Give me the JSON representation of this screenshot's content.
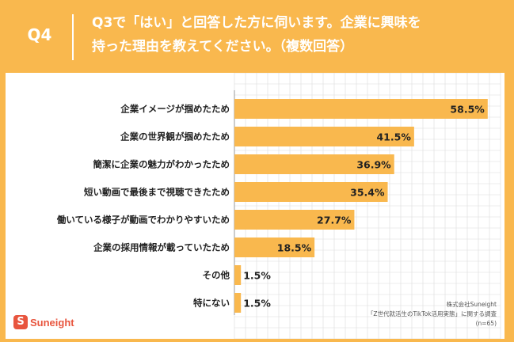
{
  "header": {
    "qnum": "Q4",
    "title_line1": "Q3で「はい」と回答した方に伺います。企業に興味を",
    "title_line2": "持った理由を教えてください。（複数回答）"
  },
  "colors": {
    "bar": "#f9b84e",
    "background": "#f9b84e",
    "grid": "#dcdcdc",
    "logo": "#e8553e"
  },
  "chart_data": {
    "type": "bar",
    "orientation": "horizontal",
    "categories": [
      "企業イメージが掴めたため",
      "企業の世界観が掴めたため",
      "簡潔に企業の魅力がわかったため",
      "短い動画で最後まで視聴できたため",
      "働いている様子が動画でわかりやすいため",
      "企業の採用情報が載っていたため",
      "その他",
      "特にない"
    ],
    "values": [
      58.5,
      41.5,
      36.9,
      35.4,
      27.7,
      18.5,
      1.5,
      1.5
    ],
    "value_labels": [
      "58.5%",
      "41.5%",
      "36.9%",
      "35.4%",
      "27.7%",
      "18.5%",
      "1.5%",
      "1.5%"
    ],
    "xlim": [
      0,
      60
    ],
    "grid": true
  },
  "source": {
    "line1": "株式会社Suneight",
    "line2": "「Z世代就活生のTikTok活用実態」に関する調査",
    "line3": "(n=65)"
  },
  "logo": {
    "icon": "S",
    "text": "Suneight",
    "icon_name": "suneight-logo-icon"
  }
}
